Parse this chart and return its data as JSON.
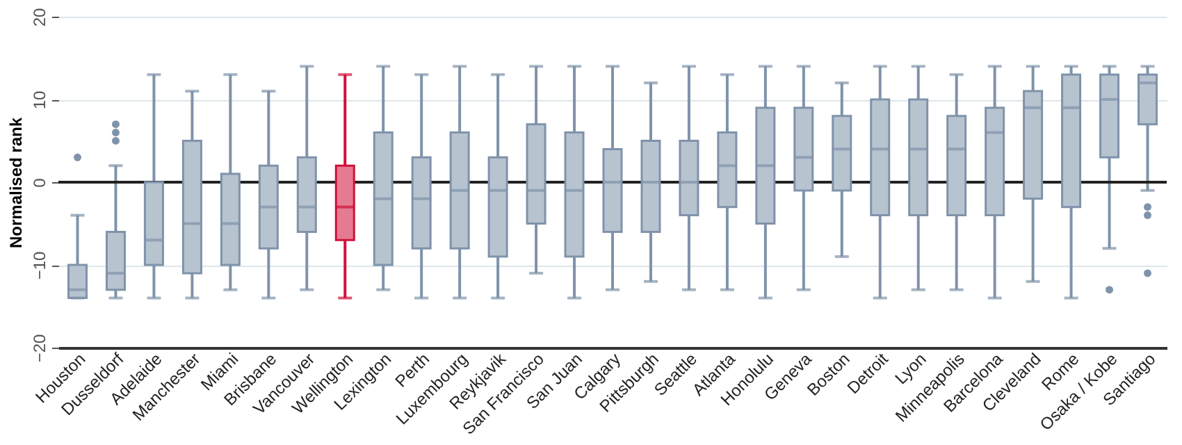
{
  "chart_data": {
    "type": "box",
    "ylabel": "Normalised rank",
    "categories": [
      "Houston",
      "Dusseldorf",
      "Adelaide",
      "Manchester",
      "Miami",
      "Brisbane",
      "Vancouver",
      "Wellington",
      "Lexington",
      "Perth",
      "Luxembourg",
      "Reykjavik",
      "San Francisco",
      "San Juan",
      "Calgary",
      "Pittsburgh",
      "Seattle",
      "Atlanta",
      "Honolulu",
      "Geneva",
      "Boston",
      "Detroit",
      "Lyon",
      "Minneapolis",
      "Barcelona",
      "Cleveland",
      "Rome",
      "Osaka / Kobe",
      "Santiago"
    ],
    "boxes": [
      {
        "low": -14,
        "q1": -14,
        "median": -13,
        "q3": -10,
        "high": -4,
        "outliers": [
          3
        ]
      },
      {
        "low": -14,
        "q1": -13,
        "median": -11,
        "q3": -6,
        "high": 2,
        "outliers": [
          5,
          6,
          7
        ]
      },
      {
        "low": -14,
        "q1": -10,
        "median": -7,
        "q3": 0,
        "high": 13
      },
      {
        "low": -14,
        "q1": -11,
        "median": -5,
        "q3": 5,
        "high": 11
      },
      {
        "low": -13,
        "q1": -10,
        "median": -5,
        "q3": 1,
        "high": 13
      },
      {
        "low": -14,
        "q1": -8,
        "median": -3,
        "q3": 2,
        "high": 11
      },
      {
        "low": -13,
        "q1": -6,
        "median": -3,
        "q3": 3,
        "high": 14
      },
      {
        "low": -14,
        "q1": -7,
        "median": -3,
        "q3": 2,
        "high": 13
      },
      {
        "low": -13,
        "q1": -10,
        "median": -2,
        "q3": 6,
        "high": 14
      },
      {
        "low": -14,
        "q1": -8,
        "median": -2,
        "q3": 3,
        "high": 13
      },
      {
        "low": -14,
        "q1": -8,
        "median": -1,
        "q3": 6,
        "high": 14
      },
      {
        "low": -14,
        "q1": -9,
        "median": -1,
        "q3": 3,
        "high": 13
      },
      {
        "low": -11,
        "q1": -5,
        "median": -1,
        "q3": 7,
        "high": 14
      },
      {
        "low": -14,
        "q1": -9,
        "median": -1,
        "q3": 6,
        "high": 14
      },
      {
        "low": -13,
        "q1": -6,
        "median": 0,
        "q3": 4,
        "high": 14
      },
      {
        "low": -12,
        "q1": -6,
        "median": 0,
        "q3": 5,
        "high": 12
      },
      {
        "low": -13,
        "q1": -4,
        "median": 0,
        "q3": 5,
        "high": 14
      },
      {
        "low": -13,
        "q1": -3,
        "median": 2,
        "q3": 6,
        "high": 13
      },
      {
        "low": -14,
        "q1": -5,
        "median": 2,
        "q3": 9,
        "high": 14
      },
      {
        "low": -13,
        "q1": -1,
        "median": 3,
        "q3": 9,
        "high": 14
      },
      {
        "low": -9,
        "q1": -1,
        "median": 4,
        "q3": 8,
        "high": 12
      },
      {
        "low": -14,
        "q1": -4,
        "median": 4,
        "q3": 10,
        "high": 14
      },
      {
        "low": -13,
        "q1": -4,
        "median": 4,
        "q3": 10,
        "high": 14
      },
      {
        "low": -13,
        "q1": -4,
        "median": 4,
        "q3": 8,
        "high": 13
      },
      {
        "low": -14,
        "q1": -4,
        "median": 6,
        "q3": 9,
        "high": 14
      },
      {
        "low": -12,
        "q1": -2,
        "median": 9,
        "q3": 11,
        "high": 14
      },
      {
        "low": -14,
        "q1": -3,
        "median": 9,
        "q3": 13,
        "high": 14
      },
      {
        "low": -8,
        "q1": 3,
        "median": 10,
        "q3": 13,
        "high": 14,
        "outliers": [
          -13
        ]
      },
      {
        "low": -1,
        "q1": 7,
        "median": 12,
        "q3": 13,
        "high": 14,
        "outliers": [
          -3,
          -4,
          -11
        ]
      }
    ],
    "colors": [
      "#7f93aa",
      "#7f93aa",
      "#7f93aa",
      "#7f93aa",
      "#7f93aa",
      "#7f93aa",
      "#7f93aa",
      "#d0103a",
      "#7f93aa",
      "#7f93aa",
      "#7f93aa",
      "#7f93aa",
      "#7f93aa",
      "#7f93aa",
      "#7f93aa",
      "#7f93aa",
      "#7f93aa",
      "#7f93aa",
      "#7f93aa",
      "#7f93aa",
      "#7f93aa",
      "#7f93aa",
      "#7f93aa",
      "#7f93aa",
      "#7f93aa",
      "#7f93aa",
      "#7f93aa",
      "#7f93aa",
      "#7f93aa"
    ],
    "ylim": [
      -20,
      20
    ],
    "yticks": [
      -20,
      -10,
      0,
      10,
      20
    ],
    "grid": "y",
    "ref_lines": [
      {
        "axis": "y",
        "value": 0,
        "color": "#222222"
      }
    ]
  }
}
